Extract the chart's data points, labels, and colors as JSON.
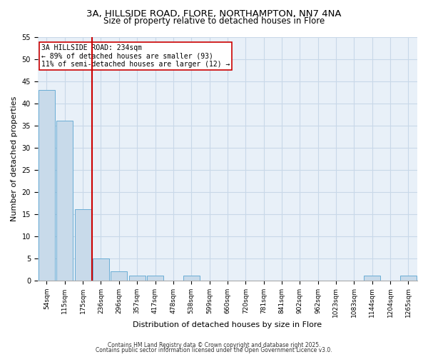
{
  "title_line1": "3A, HILLSIDE ROAD, FLORE, NORTHAMPTON, NN7 4NA",
  "title_line2": "Size of property relative to detached houses in Flore",
  "xlabel": "Distribution of detached houses by size in Flore",
  "ylabel": "Number of detached properties",
  "bins": [
    "54sqm",
    "115sqm",
    "175sqm",
    "236sqm",
    "296sqm",
    "357sqm",
    "417sqm",
    "478sqm",
    "538sqm",
    "599sqm",
    "660sqm",
    "720sqm",
    "781sqm",
    "841sqm",
    "902sqm",
    "962sqm",
    "1023sqm",
    "1083sqm",
    "1144sqm",
    "1204sqm",
    "1265sqm"
  ],
  "values": [
    43,
    36,
    16,
    5,
    2,
    1,
    1,
    0,
    1,
    0,
    0,
    0,
    0,
    0,
    0,
    0,
    0,
    0,
    1,
    0,
    1
  ],
  "bar_color": "#c8daea",
  "bar_edge_color": "#6aadd5",
  "vline_color": "#cc0000",
  "annotation_text": "3A HILLSIDE ROAD: 234sqm\n← 89% of detached houses are smaller (93)\n11% of semi-detached houses are larger (12) →",
  "annotation_box_color": "#ffffff",
  "annotation_box_edge": "#cc0000",
  "ylim": [
    0,
    55
  ],
  "grid_color": "#c8d8e8",
  "background_color": "#e8f0f8",
  "footer_line1": "Contains HM Land Registry data © Crown copyright and database right 2025.",
  "footer_line2": "Contains public sector information licensed under the Open Government Licence v3.0.",
  "title_fontsize": 9.5,
  "subtitle_fontsize": 8.5,
  "tick_fontsize": 6.5,
  "ylabel_fontsize": 8,
  "xlabel_fontsize": 8,
  "annotation_fontsize": 7,
  "footer_fontsize": 5.5
}
